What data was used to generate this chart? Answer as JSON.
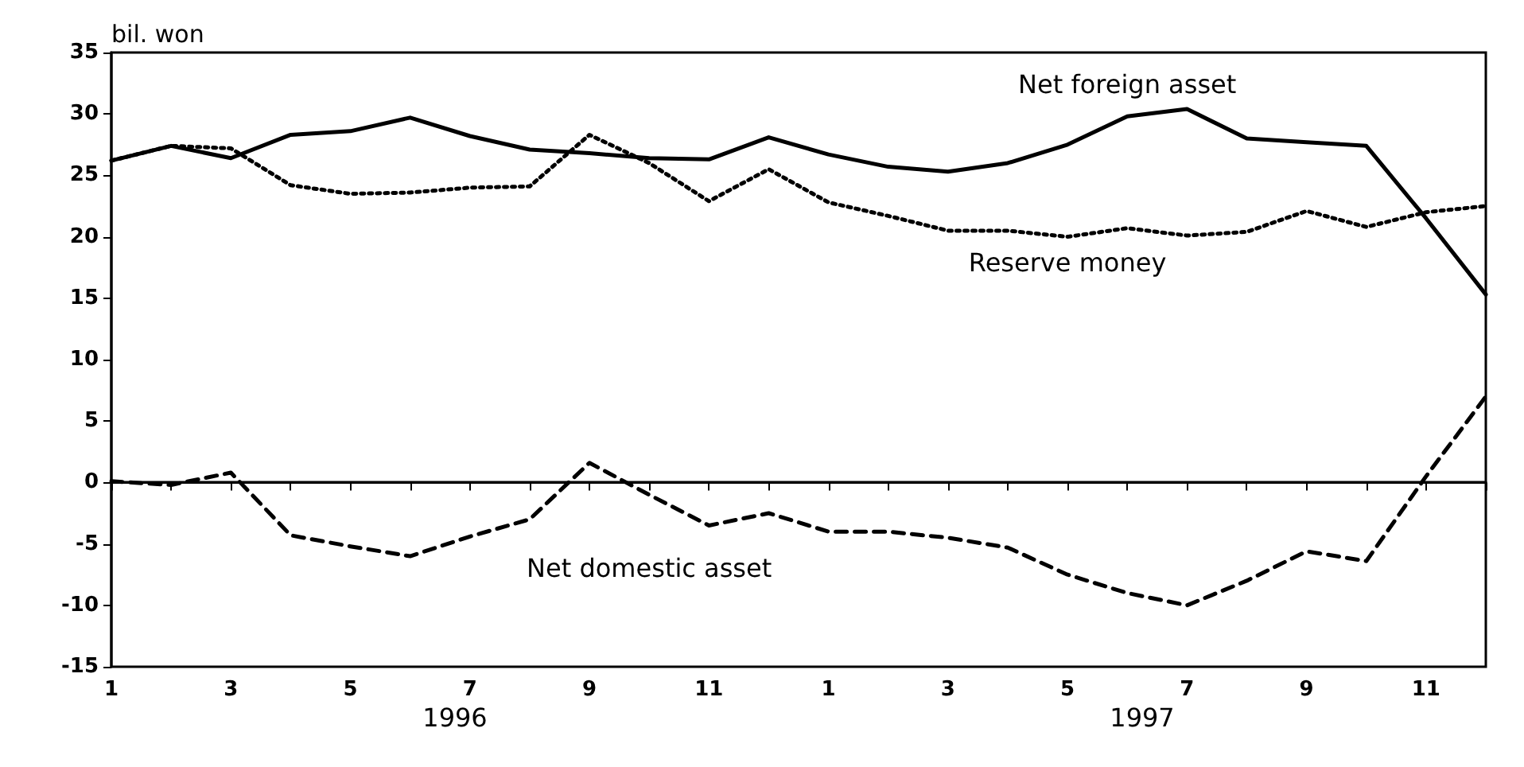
{
  "chart_data": {
    "type": "line",
    "ylabel": "bil. won",
    "categories": [
      "1",
      null,
      "3",
      null,
      "5",
      null,
      "7",
      null,
      "9",
      null,
      "11",
      null,
      "1",
      null,
      "3",
      null,
      "5",
      null,
      "7",
      null,
      "9",
      null,
      "11",
      null
    ],
    "series": [
      {
        "name": "Net foreign asset",
        "color": "#000000",
        "line_style": "solid",
        "values": [
          26.2,
          27.4,
          26.4,
          28.3,
          28.6,
          29.7,
          28.2,
          27.1,
          26.8,
          26.4,
          26.3,
          28.1,
          26.7,
          25.7,
          25.3,
          26.0,
          27.5,
          29.8,
          30.4,
          28.0,
          27.7,
          27.4,
          21.5,
          15.3
        ]
      },
      {
        "name": "Reserve money",
        "color": "#000000",
        "line_style": "dotted",
        "values": [
          26.2,
          27.4,
          27.2,
          24.2,
          23.5,
          23.6,
          24.0,
          24.1,
          28.3,
          26.0,
          22.9,
          25.5,
          22.8,
          21.7,
          20.5,
          20.5,
          20.0,
          20.7,
          20.1,
          20.4,
          22.1,
          20.8,
          22.0,
          22.5
        ]
      },
      {
        "name": "Net domestic asset",
        "color": "#000000",
        "line_style": "dashed",
        "values": [
          0.1,
          -0.2,
          0.8,
          -4.3,
          -5.2,
          -6.0,
          -4.4,
          -3.0,
          1.6,
          -1.0,
          -3.5,
          -2.5,
          -4.0,
          -4.0,
          -4.5,
          -5.3,
          -7.5,
          -9.0,
          -10.0,
          -8.0,
          -5.6,
          -6.4,
          0.5,
          7.0
        ]
      }
    ],
    "ylim": [
      -15,
      35
    ],
    "yticks": [
      -15,
      -10,
      -5,
      0,
      5,
      10,
      15,
      20,
      25,
      30,
      35
    ],
    "ref_lines": [
      {
        "axis": "y",
        "value": 0,
        "color": "#000000",
        "line_style": "solid"
      }
    ],
    "annotations": [
      "1996",
      "1997"
    ],
    "grid": false,
    "legend": false,
    "marker": "none"
  }
}
